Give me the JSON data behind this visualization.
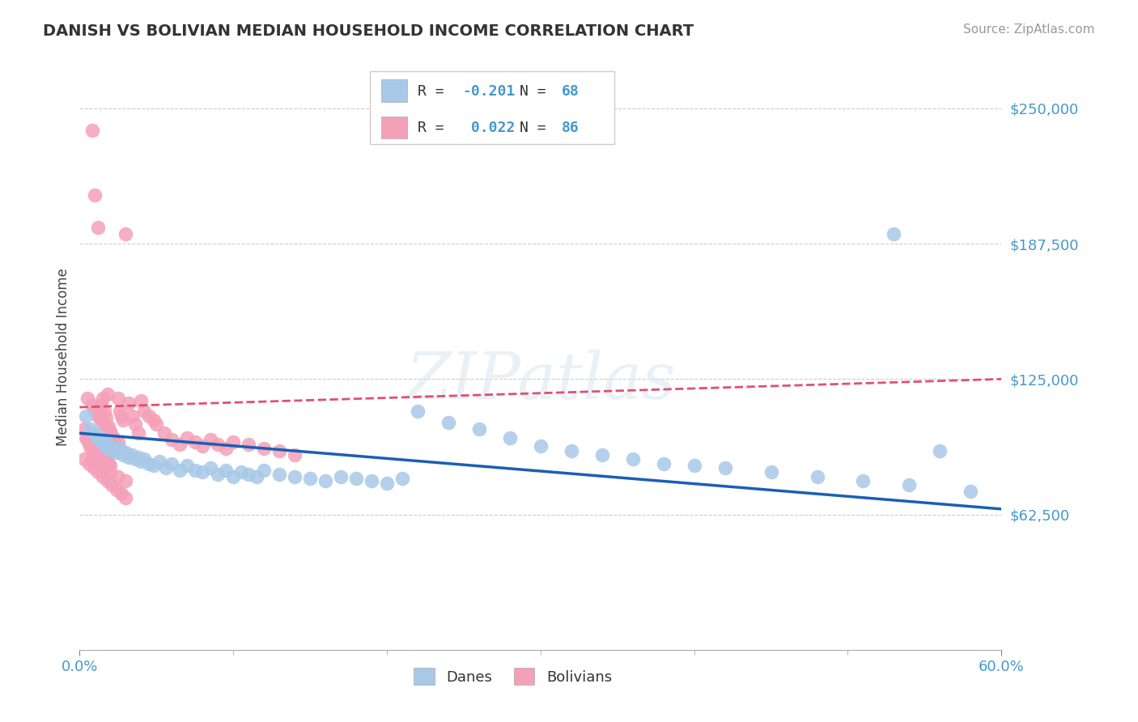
{
  "title": "DANISH VS BOLIVIAN MEDIAN HOUSEHOLD INCOME CORRELATION CHART",
  "source": "Source: ZipAtlas.com",
  "ylabel": "Median Household Income",
  "xlim": [
    0.0,
    0.6
  ],
  "ylim": [
    0,
    270000
  ],
  "yticks": [
    62500,
    125000,
    187500,
    250000
  ],
  "ytick_labels": [
    "$62,500",
    "$125,000",
    "$187,500",
    "$250,000"
  ],
  "danes_R": -0.201,
  "danes_N": 68,
  "bolivians_R": 0.022,
  "bolivians_N": 86,
  "danes_color": "#a8c8e8",
  "bolivians_color": "#f4a0b8",
  "danes_line_color": "#1a5fb4",
  "bolivians_line_color": "#e05070",
  "background_color": "#ffffff",
  "watermark": "ZIPatlas",
  "danes_x": [
    0.004,
    0.007,
    0.01,
    0.011,
    0.012,
    0.013,
    0.014,
    0.015,
    0.016,
    0.017,
    0.018,
    0.019,
    0.02,
    0.022,
    0.024,
    0.026,
    0.028,
    0.03,
    0.032,
    0.034,
    0.036,
    0.038,
    0.04,
    0.042,
    0.045,
    0.048,
    0.052,
    0.056,
    0.06,
    0.065,
    0.07,
    0.075,
    0.08,
    0.085,
    0.09,
    0.095,
    0.1,
    0.105,
    0.11,
    0.115,
    0.12,
    0.13,
    0.14,
    0.15,
    0.16,
    0.17,
    0.18,
    0.19,
    0.2,
    0.21,
    0.22,
    0.24,
    0.26,
    0.28,
    0.3,
    0.32,
    0.34,
    0.36,
    0.38,
    0.4,
    0.42,
    0.45,
    0.48,
    0.51,
    0.54,
    0.56,
    0.58,
    0.53
  ],
  "danes_y": [
    108000,
    102000,
    100000,
    99000,
    98000,
    97000,
    96000,
    97000,
    95000,
    94000,
    93000,
    95000,
    94000,
    92000,
    91000,
    93000,
    90000,
    91000,
    89000,
    90000,
    88000,
    89000,
    87000,
    88000,
    86000,
    85000,
    87000,
    84000,
    86000,
    83000,
    85000,
    83000,
    82000,
    84000,
    81000,
    83000,
    80000,
    82000,
    81000,
    80000,
    83000,
    81000,
    80000,
    79000,
    78000,
    80000,
    79000,
    78000,
    77000,
    79000,
    110000,
    105000,
    102000,
    98000,
    94000,
    92000,
    90000,
    88000,
    86000,
    85000,
    84000,
    82000,
    80000,
    78000,
    76000,
    92000,
    73000,
    192000
  ],
  "bolivians_x": [
    0.003,
    0.004,
    0.005,
    0.006,
    0.007,
    0.008,
    0.008,
    0.009,
    0.01,
    0.01,
    0.011,
    0.012,
    0.012,
    0.013,
    0.013,
    0.014,
    0.015,
    0.015,
    0.016,
    0.016,
    0.017,
    0.017,
    0.018,
    0.018,
    0.019,
    0.019,
    0.02,
    0.02,
    0.021,
    0.022,
    0.023,
    0.024,
    0.025,
    0.026,
    0.027,
    0.028,
    0.03,
    0.032,
    0.034,
    0.036,
    0.038,
    0.04,
    0.042,
    0.045,
    0.048,
    0.05,
    0.055,
    0.06,
    0.065,
    0.07,
    0.075,
    0.08,
    0.085,
    0.09,
    0.095,
    0.1,
    0.11,
    0.12,
    0.13,
    0.14,
    0.005,
    0.008,
    0.01,
    0.012,
    0.014,
    0.016,
    0.018,
    0.02,
    0.022,
    0.025,
    0.003,
    0.006,
    0.009,
    0.012,
    0.015,
    0.018,
    0.021,
    0.024,
    0.027,
    0.03,
    0.008,
    0.012,
    0.015,
    0.02,
    0.025,
    0.03
  ],
  "bolivians_y": [
    102000,
    98000,
    97000,
    95000,
    93000,
    94000,
    240000,
    92000,
    91000,
    210000,
    90000,
    92000,
    195000,
    91000,
    108000,
    113000,
    116000,
    90000,
    110000,
    89000,
    107000,
    88000,
    118000,
    87000,
    103000,
    86000,
    101000,
    85000,
    99000,
    97000,
    95000,
    94000,
    116000,
    110000,
    108000,
    106000,
    192000,
    114000,
    108000,
    104000,
    100000,
    115000,
    110000,
    108000,
    106000,
    104000,
    100000,
    97000,
    95000,
    98000,
    96000,
    94000,
    97000,
    95000,
    93000,
    96000,
    95000,
    93000,
    92000,
    90000,
    116000,
    113000,
    110000,
    108000,
    106000,
    104000,
    102000,
    100000,
    98000,
    96000,
    88000,
    86000,
    84000,
    82000,
    80000,
    78000,
    76000,
    74000,
    72000,
    70000,
    88000,
    86000,
    84000,
    82000,
    80000,
    78000
  ]
}
